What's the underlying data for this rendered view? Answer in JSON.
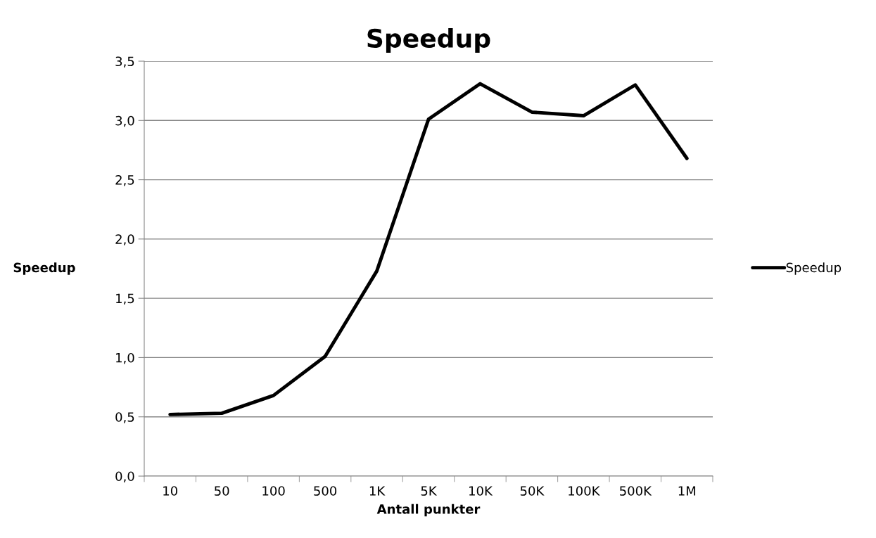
{
  "chart_data": {
    "type": "line",
    "title": "Speedup",
    "xlabel": "Antall punkter",
    "ylabel": "Speedup",
    "categories": [
      "10",
      "50",
      "100",
      "500",
      "1K",
      "5K",
      "10K",
      "50K",
      "100K",
      "500K",
      "1M"
    ],
    "series": [
      {
        "name": "Speedup",
        "color": "#000000",
        "values": [
          0.52,
          0.53,
          0.68,
          1.01,
          1.73,
          3.01,
          3.31,
          3.07,
          3.04,
          3.3,
          2.68
        ]
      }
    ],
    "ylim": [
      0,
      3.5
    ],
    "yticks": [
      {
        "value": 0,
        "label": "0,0"
      },
      {
        "value": 0.5,
        "label": "0,5"
      },
      {
        "value": 1,
        "label": "1,0"
      },
      {
        "value": 1.5,
        "label": "1,5"
      },
      {
        "value": 2,
        "label": "2,0"
      },
      {
        "value": 2.5,
        "label": "2,5"
      },
      {
        "value": 3,
        "label": "3,0"
      },
      {
        "value": 3.5,
        "label": "3,5"
      }
    ],
    "grid": "y",
    "legend": "right",
    "marker": "none",
    "line_style": "solid"
  }
}
